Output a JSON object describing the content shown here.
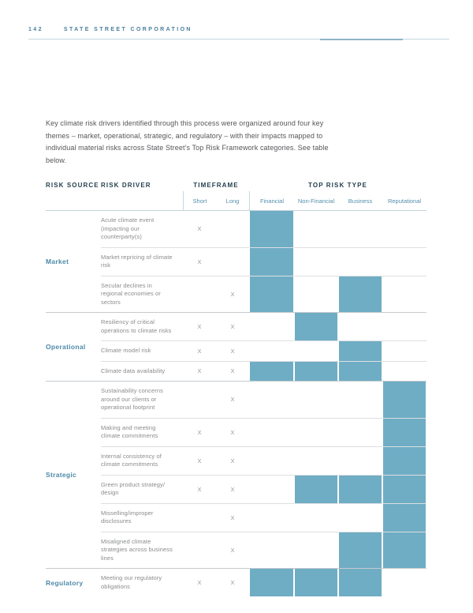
{
  "page": {
    "page_number": "142",
    "company": "STATE STREET CORPORATION",
    "intro": "Key climate risk drivers identified through this process were organized around four key themes – market, operational, strategic, and regulatory – with their impacts mapped to individual material risks across State Street’s Top Risk Framework categories. See table below."
  },
  "colors": {
    "fill_teal": "#6fadc4",
    "heading_navy": "#24404f",
    "label_blue": "#4d8aa9",
    "subheader_blue": "#5590ad",
    "body_gray": "#55565a",
    "driver_gray": "#898b8e"
  },
  "table": {
    "x_mark": "X",
    "headers": {
      "risk_source": "RISK SOURCE",
      "risk_driver": "RISK DRIVER",
      "timeframe": "TIMEFRAME",
      "top_risk_type": "TOP RISK TYPE",
      "timeframe_cols": [
        "Short",
        "Long"
      ],
      "risk_type_cols": [
        "Financial",
        "Non-Financial",
        "Business",
        "Reputational"
      ]
    },
    "groups": [
      {
        "source": "Market",
        "rows": [
          {
            "driver": "Acute climate event (impacting our counterparty(s)",
            "timeframe": [
              "Short"
            ],
            "risk_types": [
              "Financial"
            ]
          },
          {
            "driver": "Market repricing of climate risk",
            "timeframe": [
              "Short"
            ],
            "risk_types": [
              "Financial"
            ]
          },
          {
            "driver": "Secular declines in regional economies or sectors",
            "timeframe": [
              "Long"
            ],
            "risk_types": [
              "Financial",
              "Business"
            ]
          }
        ]
      },
      {
        "source": "Operational",
        "rows": [
          {
            "driver": "Resiliency of critical operations to climate risks",
            "timeframe": [
              "Short",
              "Long"
            ],
            "risk_types": [
              "Non-Financial"
            ]
          },
          {
            "driver": "Climate model risk",
            "timeframe": [
              "Short",
              "Long"
            ],
            "risk_types": [
              "Business"
            ]
          },
          {
            "driver": "Climate data availability",
            "timeframe": [
              "Short",
              "Long"
            ],
            "risk_types": [
              "Financial",
              "Non-Financial",
              "Business"
            ]
          }
        ]
      },
      {
        "source": "Strategic",
        "rows": [
          {
            "driver": "Sustainability concerns around our clients or operational footprint",
            "timeframe": [
              "Long"
            ],
            "risk_types": [
              "Reputational"
            ]
          },
          {
            "driver": "Making and meeting climate commitments",
            "timeframe": [
              "Short",
              "Long"
            ],
            "risk_types": [
              "Reputational"
            ]
          },
          {
            "driver": "Internal consistency of climate commitments",
            "timeframe": [
              "Short",
              "Long"
            ],
            "risk_types": [
              "Reputational"
            ]
          },
          {
            "driver": "Green product strategy/ design",
            "timeframe": [
              "Short",
              "Long"
            ],
            "risk_types": [
              "Non-Financial",
              "Business",
              "Reputational"
            ]
          },
          {
            "driver": "Misselling/improper disclosures",
            "timeframe": [
              "Long"
            ],
            "risk_types": [
              "Reputational"
            ]
          },
          {
            "driver": "Misaligned climate strategies across business lines",
            "timeframe": [
              "Long"
            ],
            "risk_types": [
              "Business",
              "Reputational"
            ]
          }
        ]
      },
      {
        "source": "Regulatory",
        "rows": [
          {
            "driver": "Meeting our regulatory obligations",
            "timeframe": [
              "Short",
              "Long"
            ],
            "risk_types": [
              "Financial",
              "Non-Financial",
              "Business"
            ]
          }
        ]
      }
    ]
  }
}
